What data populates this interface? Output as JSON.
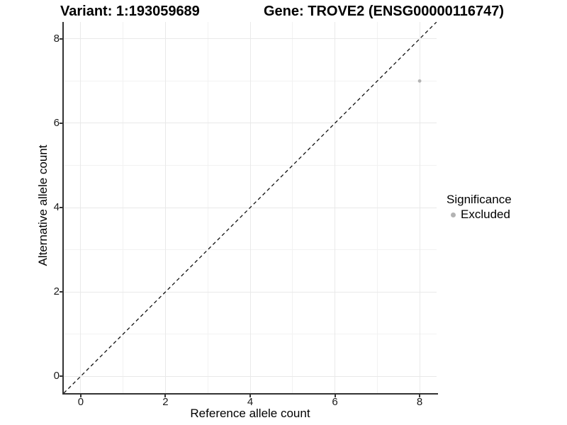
{
  "header": {
    "variant_title": "Variant: 1:193059689",
    "gene_title": "Gene: TROVE2 (ENSG00000116747)"
  },
  "chart_data": {
    "type": "scatter",
    "title_left": "Variant: 1:193059689",
    "title_right": "Gene: TROVE2 (ENSG00000116747)",
    "xlabel": "Reference allele count",
    "ylabel": "Alternative allele count",
    "xlim": [
      -0.4,
      8.4
    ],
    "ylim": [
      -0.4,
      8.4
    ],
    "x_major_ticks": [
      0,
      2,
      4,
      6,
      8
    ],
    "y_major_ticks": [
      0,
      2,
      4,
      6,
      8
    ],
    "x_minor_ticks": [
      1,
      3,
      5,
      7
    ],
    "y_minor_ticks": [
      1,
      3,
      5,
      7
    ],
    "grid": true,
    "points": [
      {
        "x": 8,
        "y": 7,
        "series": "Excluded"
      }
    ],
    "reference_line": {
      "slope": 1,
      "intercept": 0,
      "style": "dashed",
      "color": "#111111"
    },
    "legend": {
      "title": "Significance",
      "position": "right",
      "items": [
        {
          "label": "Excluded",
          "color": "#b3b3b3"
        }
      ]
    },
    "colors": {
      "point": "#b3b3b3",
      "grid_major": "#e9e9e9",
      "grid_minor": "#f2f2f2",
      "axis_line": "#333333",
      "text": "#000000",
      "background": "#ffffff"
    }
  }
}
